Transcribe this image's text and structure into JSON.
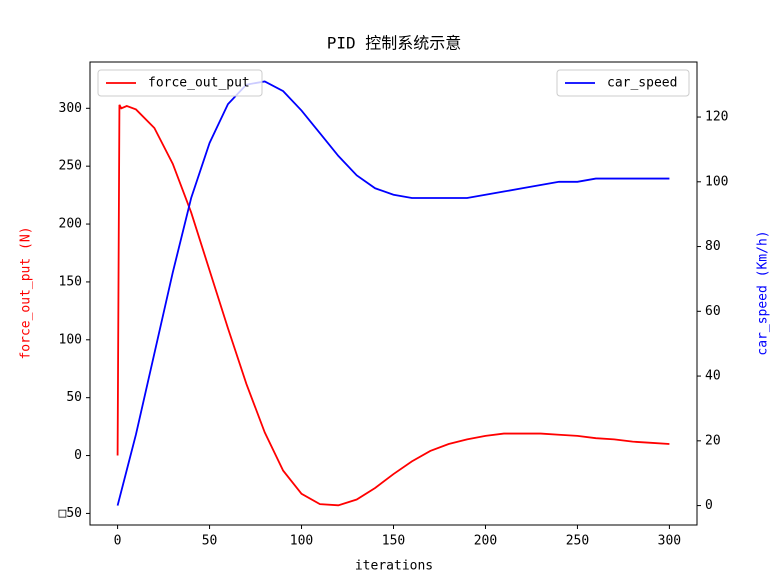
{
  "chart_data": {
    "type": "line",
    "title": "PID 控制系统示意",
    "xlabel": "iterations",
    "ylabel": "force_out_put  (N)",
    "y2label": "car_speed  (Km/h)",
    "xlim": [
      -15,
      315
    ],
    "xticks": [
      0,
      50,
      100,
      150,
      200,
      250,
      300
    ],
    "ylim": [
      -60,
      340
    ],
    "yticks": [
      {
        "value": -50,
        "label": "□50"
      },
      0,
      50,
      100,
      150,
      200,
      250,
      300
    ],
    "y2lim": [
      -6,
      137
    ],
    "y2ticks": [
      0,
      20,
      40,
      60,
      80,
      100,
      120
    ],
    "series": [
      {
        "name": "force_out_put",
        "color": "#ff0000",
        "legend": "upper left",
        "x": [
          0,
          1,
          2,
          5,
          10,
          20,
          30,
          40,
          50,
          60,
          70,
          80,
          90,
          100,
          110,
          120,
          130,
          140,
          150,
          160,
          170,
          180,
          190,
          200,
          210,
          220,
          230,
          240,
          250,
          260,
          270,
          280,
          290,
          300
        ],
        "values": [
          0,
          303,
          300,
          302,
          299,
          283,
          252,
          210,
          160,
          110,
          62,
          20,
          -13,
          -33,
          -42,
          -43,
          -38,
          -28,
          -16,
          -5,
          4,
          10,
          14,
          17,
          19,
          19,
          19,
          18,
          17,
          15,
          14,
          12,
          11,
          10
        ]
      },
      {
        "name": "car_speed",
        "color": "#0000ff",
        "axis": "y2",
        "legend": "upper right",
        "x": [
          0,
          10,
          20,
          30,
          40,
          50,
          60,
          70,
          80,
          90,
          100,
          110,
          120,
          130,
          140,
          150,
          160,
          170,
          180,
          190,
          200,
          210,
          220,
          230,
          240,
          250,
          260,
          270,
          280,
          290,
          300
        ],
        "values": [
          0,
          22,
          47,
          72,
          95,
          112,
          124,
          130,
          131,
          128,
          122,
          115,
          108,
          102,
          98,
          96,
          95,
          95,
          95,
          95,
          96,
          97,
          98,
          99,
          100,
          100,
          101,
          101,
          101,
          101,
          101
        ]
      }
    ]
  }
}
